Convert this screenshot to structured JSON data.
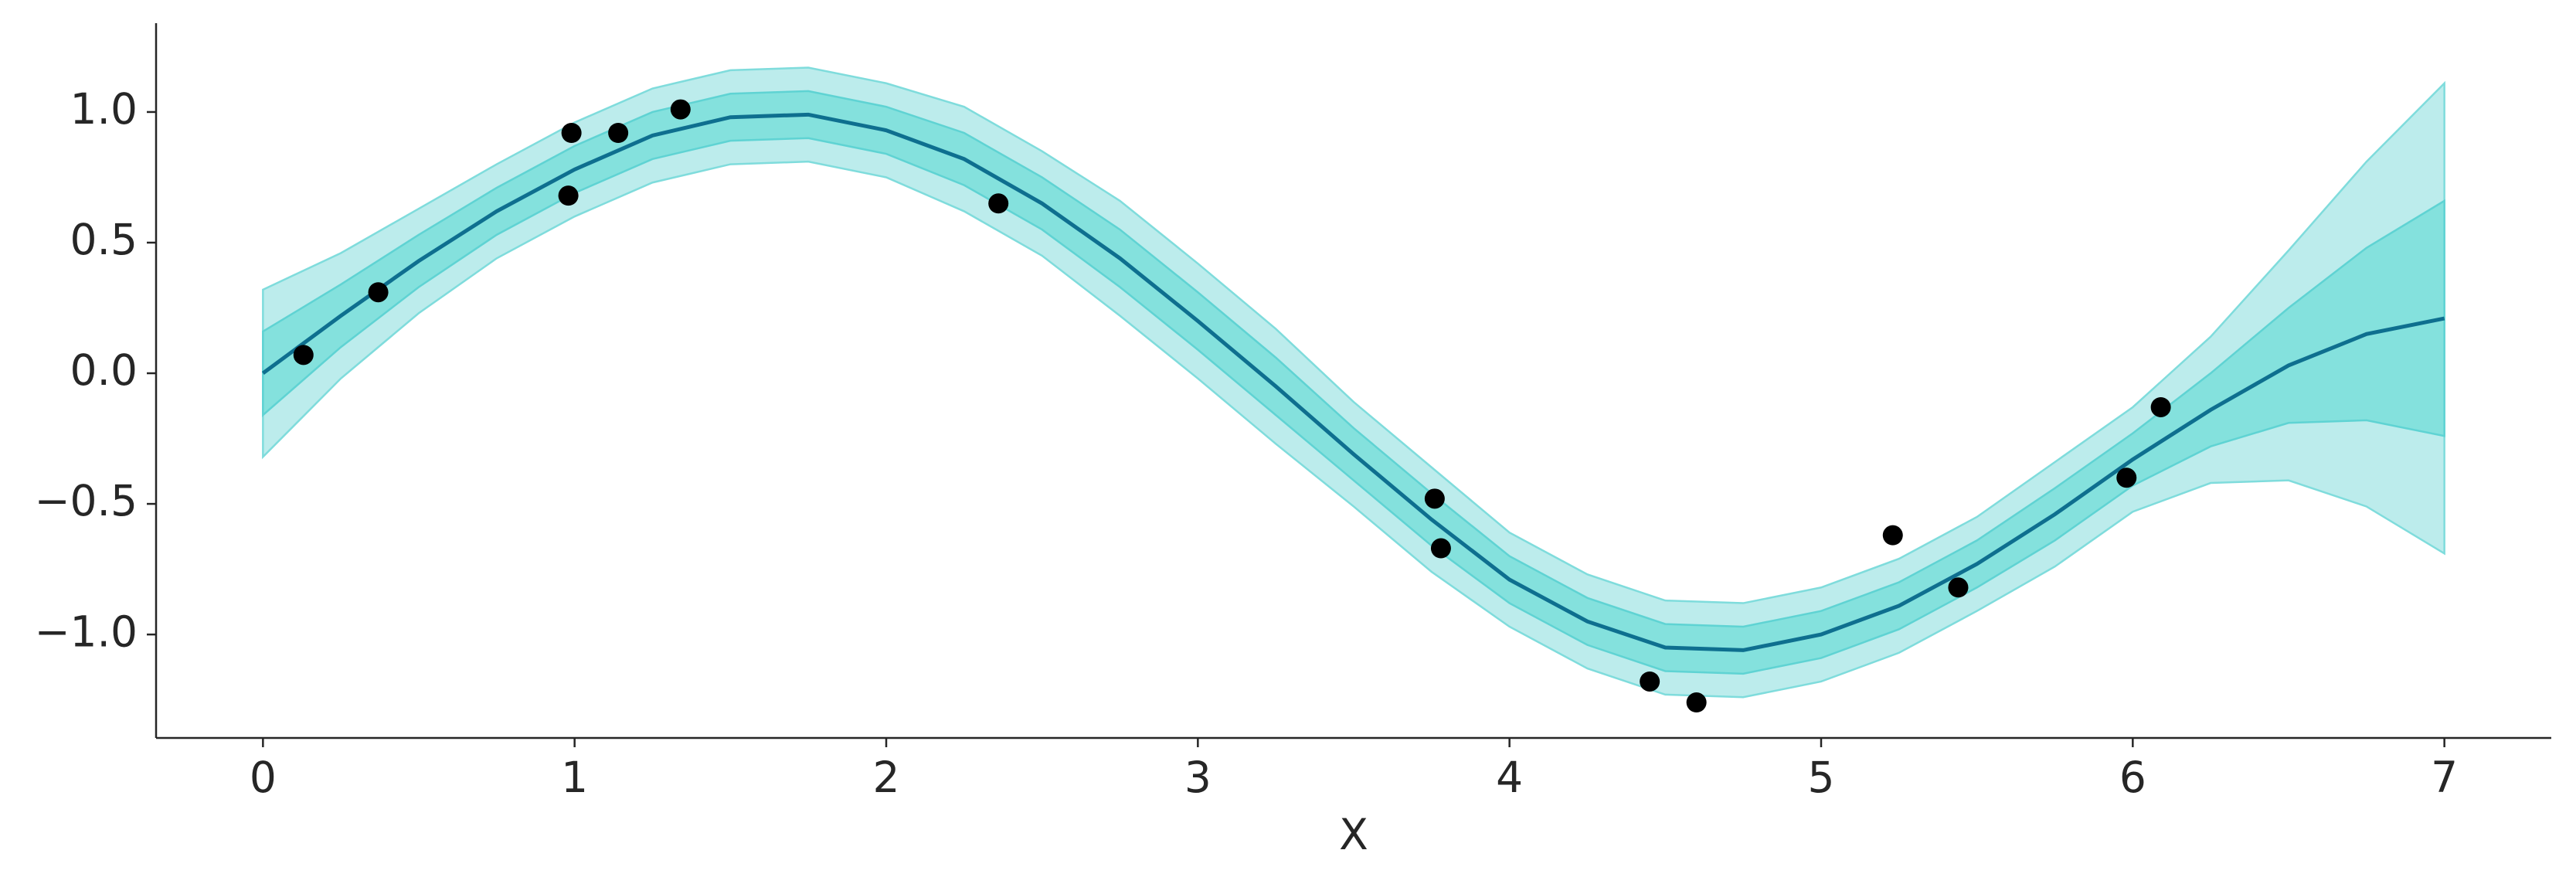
{
  "chart_data": {
    "type": "line",
    "xlabel": "X",
    "xlim": [
      -0.343,
      7.343
    ],
    "ylim": [
      -1.396,
      1.34
    ],
    "xticks": [
      0,
      1,
      2,
      3,
      4,
      5,
      6,
      7
    ],
    "yticks": [
      {
        "value": -1,
        "label": "−1.0"
      },
      {
        "value": -0.5,
        "label": "−0.5"
      },
      {
        "value": 0,
        "label": "0.0"
      },
      {
        "value": 0.5,
        "label": "0.5"
      },
      {
        "value": 1,
        "label": "1.0"
      }
    ],
    "x": [
      0,
      0.25,
      0.5,
      0.75,
      1,
      1.25,
      1.5,
      1.75,
      2,
      2.25,
      2.5,
      2.75,
      3,
      3.25,
      3.5,
      3.75,
      4,
      4.25,
      4.5,
      4.75,
      5,
      5.25,
      5.5,
      5.75,
      6,
      6.25,
      6.5,
      6.75,
      7
    ],
    "bands": [
      {
        "color": "#b0e9e9",
        "edge": "#7fdcdc",
        "upper": [
          0.32,
          0.46,
          0.63,
          0.8,
          0.96,
          1.09,
          1.16,
          1.17,
          1.11,
          1.02,
          0.85,
          0.66,
          0.42,
          0.17,
          -0.11,
          -0.36,
          -0.61,
          -0.77,
          -0.87,
          -0.88,
          -0.82,
          -0.71,
          -0.55,
          -0.34,
          -0.13,
          0.14,
          0.47,
          0.81,
          1.11
        ],
        "lower": [
          -0.32,
          -0.02,
          0.23,
          0.44,
          0.6,
          0.73,
          0.8,
          0.81,
          0.75,
          0.62,
          0.45,
          0.22,
          -0.02,
          -0.27,
          -0.51,
          -0.76,
          -0.97,
          -1.13,
          -1.23,
          -1.24,
          -1.18,
          -1.07,
          -0.91,
          -0.74,
          -0.53,
          -0.42,
          -0.41,
          -0.51,
          -0.69
        ]
      },
      {
        "color": "#7adfdb",
        "edge": "#5fd3d3",
        "upper": [
          0.16,
          0.34,
          0.53,
          0.71,
          0.87,
          1.0,
          1.07,
          1.08,
          1.02,
          0.92,
          0.75,
          0.55,
          0.31,
          0.06,
          -0.21,
          -0.46,
          -0.7,
          -0.86,
          -0.96,
          -0.97,
          -0.91,
          -0.8,
          -0.64,
          -0.44,
          -0.23,
          0,
          0.25,
          0.48,
          0.66
        ],
        "lower": [
          -0.16,
          0.1,
          0.33,
          0.53,
          0.69,
          0.82,
          0.89,
          0.9,
          0.84,
          0.72,
          0.55,
          0.33,
          0.09,
          -0.16,
          -0.41,
          -0.66,
          -0.88,
          -1.04,
          -1.14,
          -1.15,
          -1.09,
          -0.98,
          -0.82,
          -0.64,
          -0.43,
          -0.28,
          -0.19,
          -0.18,
          -0.24
        ]
      }
    ],
    "series": [
      {
        "color": "#0e6f8f",
        "values": [
          0,
          0.22,
          0.43,
          0.62,
          0.78,
          0.91,
          0.98,
          0.99,
          0.93,
          0.82,
          0.65,
          0.44,
          0.2,
          -0.05,
          -0.31,
          -0.56,
          -0.79,
          -0.95,
          -1.05,
          -1.06,
          -1.0,
          -0.89,
          -0.73,
          -0.54,
          -0.33,
          -0.14,
          0.03,
          0.15,
          0.21
        ]
      }
    ],
    "points": {
      "color": "#000000",
      "x": [
        0.13,
        0.37,
        0.99,
        0.98,
        1.14,
        1.34,
        2.36,
        3.76,
        3.78,
        4.45,
        4.6,
        5.23,
        5.44,
        5.98,
        6.09
      ],
      "y": [
        0.07,
        0.31,
        0.92,
        0.68,
        0.92,
        1.01,
        0.65,
        -0.48,
        -0.67,
        -1.18,
        -1.26,
        -0.62,
        -0.82,
        -0.4,
        -0.13
      ]
    }
  }
}
